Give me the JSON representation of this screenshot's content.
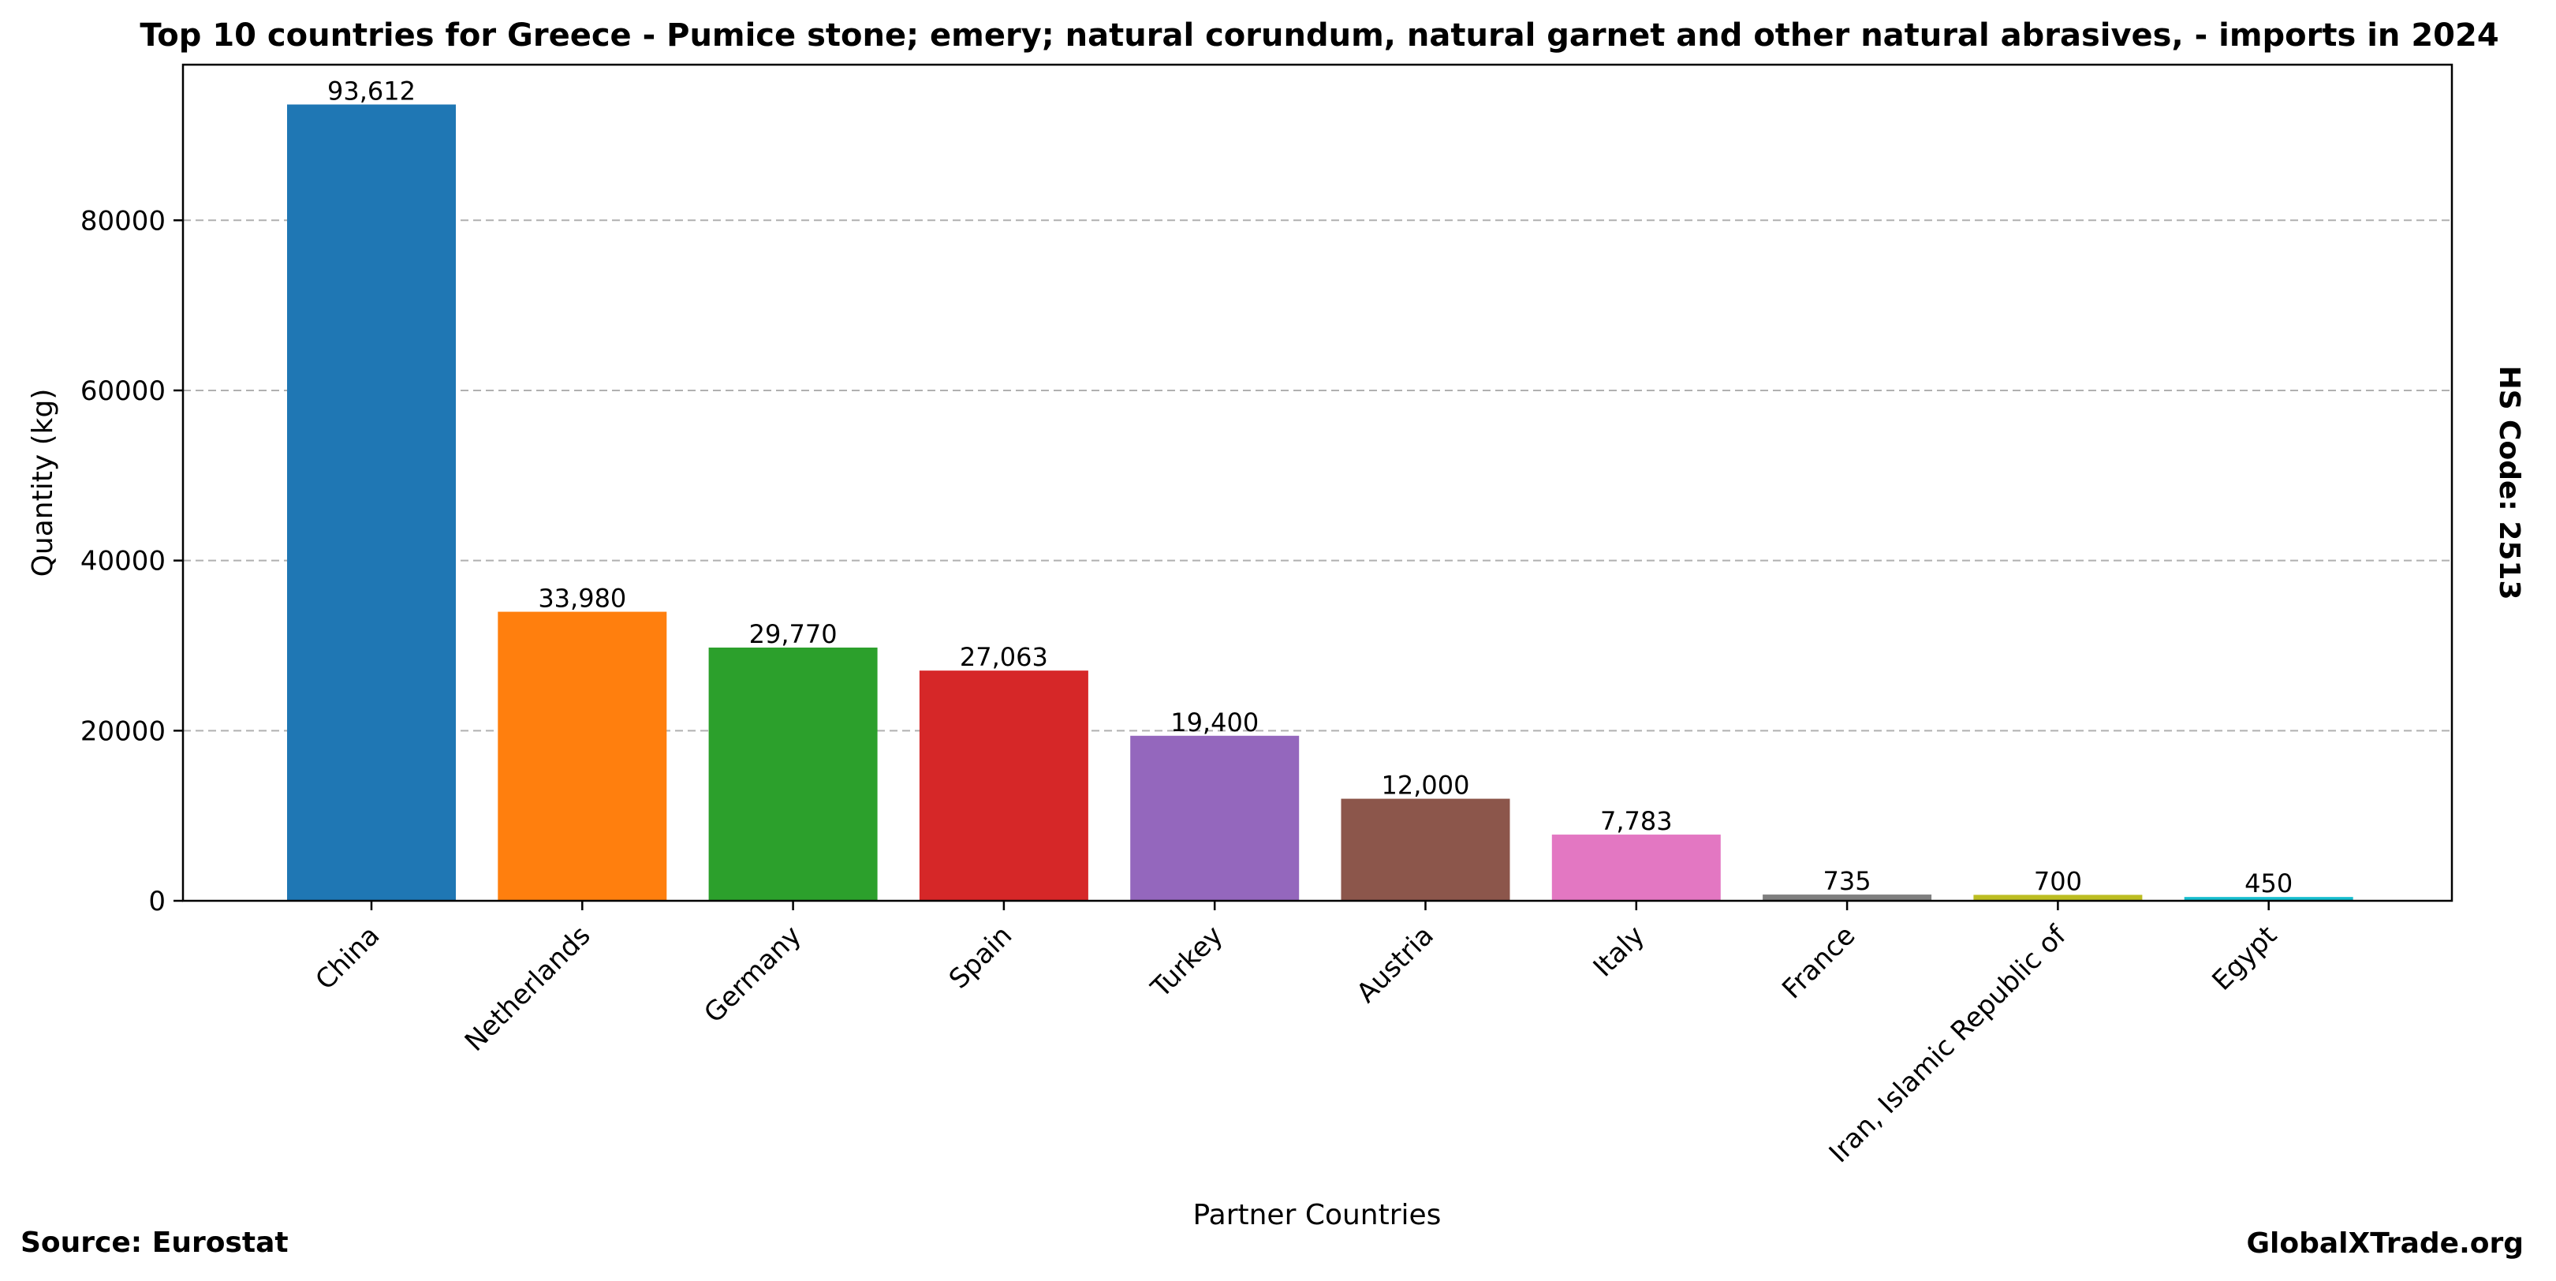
{
  "chart_data": {
    "type": "bar",
    "title": "Top 10 countries for Greece - Pumice stone; emery; natural corundum, natural garnet and other natural abrasives, - imports in 2024",
    "xlabel": "Partner Countries",
    "ylabel": "Quantity (kg)",
    "categories": [
      "China",
      "Netherlands",
      "Germany",
      "Spain",
      "Turkey",
      "Austria",
      "Italy",
      "France",
      "Iran, Islamic Republic of",
      "Egypt"
    ],
    "values": [
      93612,
      33980,
      29770,
      27063,
      19400,
      12000,
      7783,
      735,
      700,
      450
    ],
    "value_labels": [
      "93,612",
      "33,980",
      "29,770",
      "27,063",
      "19,400",
      "12,000",
      "7,783",
      "735",
      "700",
      "450"
    ],
    "colors": [
      "#1f77b4",
      "#ff7f0e",
      "#2ca02c",
      "#d62728",
      "#9467bd",
      "#8c564b",
      "#e377c2",
      "#7f7f7f",
      "#bcbd22",
      "#17becf"
    ],
    "yticks": [
      0,
      20000,
      40000,
      60000,
      80000
    ],
    "ytick_labels": [
      "0",
      "20000",
      "40000",
      "60000",
      "80000"
    ],
    "ylim": [
      0,
      98293
    ],
    "grid": "y-dashed",
    "legend": "none"
  },
  "source_label": "Source: Eurostat",
  "brand_label": "GlobalXTrade.org",
  "hs_code_label": "HS Code: 2513"
}
